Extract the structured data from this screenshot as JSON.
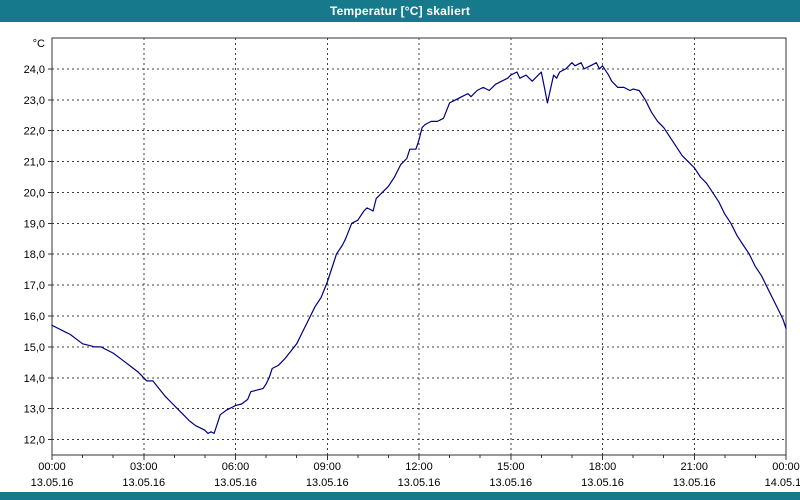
{
  "title_bar": {
    "title": "Temperatur [°C] skaliert",
    "bg_color": "#17798c",
    "fg_color": "#ffffff"
  },
  "chart_data": {
    "type": "line",
    "title": "Temperatur [°C] skaliert",
    "unit_label": "°C",
    "grid": true,
    "legend": "none",
    "line_color": "#000080",
    "ylim": [
      11.5,
      25.0
    ],
    "xlim_hours": [
      0,
      24
    ],
    "yticks": [
      {
        "value": 24,
        "label": "24,0"
      },
      {
        "value": 23,
        "label": "23,0"
      },
      {
        "value": 22,
        "label": "22,0"
      },
      {
        "value": 21,
        "label": "21,0"
      },
      {
        "value": 20,
        "label": "20,0"
      },
      {
        "value": 19,
        "label": "19,0"
      },
      {
        "value": 18,
        "label": "18,0"
      },
      {
        "value": 17,
        "label": "17,0"
      },
      {
        "value": 16,
        "label": "16,0"
      },
      {
        "value": 15,
        "label": "15,0"
      },
      {
        "value": 14,
        "label": "14,0"
      },
      {
        "value": 13,
        "label": "13,0"
      },
      {
        "value": 12,
        "label": "12,0"
      }
    ],
    "xticks": [
      {
        "hour": 0,
        "time": "00:00",
        "date": "13.05.16"
      },
      {
        "hour": 3,
        "time": "03:00",
        "date": "13.05.16"
      },
      {
        "hour": 6,
        "time": "06:00",
        "date": "13.05.16"
      },
      {
        "hour": 9,
        "time": "09:00",
        "date": "13.05.16"
      },
      {
        "hour": 12,
        "time": "12:00",
        "date": "13.05.16"
      },
      {
        "hour": 15,
        "time": "15:00",
        "date": "13.05.16"
      },
      {
        "hour": 18,
        "time": "18:00",
        "date": "13.05.16"
      },
      {
        "hour": 21,
        "time": "21:00",
        "date": "13.05.16"
      },
      {
        "hour": 24,
        "time": "00:00",
        "date": "14.05.16"
      }
    ],
    "series": [
      {
        "name": "Temperatur",
        "color": "#000080",
        "points": [
          [
            0.0,
            15.7
          ],
          [
            0.2,
            15.6
          ],
          [
            0.4,
            15.5
          ],
          [
            0.6,
            15.4
          ],
          [
            0.8,
            15.25
          ],
          [
            1.0,
            15.1
          ],
          [
            1.2,
            15.05
          ],
          [
            1.4,
            15.0
          ],
          [
            1.6,
            15.0
          ],
          [
            1.8,
            14.9
          ],
          [
            2.0,
            14.8
          ],
          [
            2.2,
            14.65
          ],
          [
            2.4,
            14.5
          ],
          [
            2.6,
            14.35
          ],
          [
            2.8,
            14.2
          ],
          [
            3.0,
            14.0
          ],
          [
            3.1,
            13.9
          ],
          [
            3.3,
            13.9
          ],
          [
            3.5,
            13.65
          ],
          [
            3.7,
            13.4
          ],
          [
            3.9,
            13.2
          ],
          [
            4.1,
            13.0
          ],
          [
            4.3,
            12.8
          ],
          [
            4.5,
            12.6
          ],
          [
            4.7,
            12.45
          ],
          [
            4.9,
            12.35
          ],
          [
            5.0,
            12.3
          ],
          [
            5.1,
            12.2
          ],
          [
            5.2,
            12.25
          ],
          [
            5.3,
            12.2
          ],
          [
            5.4,
            12.5
          ],
          [
            5.5,
            12.8
          ],
          [
            5.7,
            12.95
          ],
          [
            5.9,
            13.05
          ],
          [
            6.0,
            13.1
          ],
          [
            6.2,
            13.15
          ],
          [
            6.4,
            13.3
          ],
          [
            6.5,
            13.55
          ],
          [
            6.7,
            13.6
          ],
          [
            6.9,
            13.65
          ],
          [
            7.0,
            13.8
          ],
          [
            7.1,
            14.0
          ],
          [
            7.2,
            14.3
          ],
          [
            7.4,
            14.4
          ],
          [
            7.6,
            14.6
          ],
          [
            7.8,
            14.85
          ],
          [
            8.0,
            15.1
          ],
          [
            8.2,
            15.5
          ],
          [
            8.4,
            15.9
          ],
          [
            8.6,
            16.3
          ],
          [
            8.8,
            16.6
          ],
          [
            9.0,
            17.1
          ],
          [
            9.2,
            17.7
          ],
          [
            9.3,
            18.0
          ],
          [
            9.5,
            18.3
          ],
          [
            9.6,
            18.5
          ],
          [
            9.8,
            19.0
          ],
          [
            10.0,
            19.1
          ],
          [
            10.2,
            19.4
          ],
          [
            10.3,
            19.5
          ],
          [
            10.5,
            19.4
          ],
          [
            10.6,
            19.8
          ],
          [
            10.8,
            20.0
          ],
          [
            11.0,
            20.2
          ],
          [
            11.2,
            20.5
          ],
          [
            11.4,
            20.9
          ],
          [
            11.6,
            21.1
          ],
          [
            11.7,
            21.4
          ],
          [
            11.9,
            21.4
          ],
          [
            12.0,
            21.7
          ],
          [
            12.1,
            22.1
          ],
          [
            12.2,
            22.2
          ],
          [
            12.4,
            22.3
          ],
          [
            12.6,
            22.3
          ],
          [
            12.8,
            22.4
          ],
          [
            13.0,
            22.9
          ],
          [
            13.2,
            23.0
          ],
          [
            13.4,
            23.1
          ],
          [
            13.6,
            23.2
          ],
          [
            13.7,
            23.1
          ],
          [
            13.9,
            23.3
          ],
          [
            14.1,
            23.4
          ],
          [
            14.3,
            23.3
          ],
          [
            14.5,
            23.5
          ],
          [
            14.7,
            23.6
          ],
          [
            14.9,
            23.7
          ],
          [
            15.0,
            23.8
          ],
          [
            15.2,
            23.9
          ],
          [
            15.3,
            23.7
          ],
          [
            15.5,
            23.8
          ],
          [
            15.7,
            23.6
          ],
          [
            15.9,
            23.8
          ],
          [
            16.0,
            23.9
          ],
          [
            16.1,
            23.4
          ],
          [
            16.2,
            22.9
          ],
          [
            16.4,
            23.8
          ],
          [
            16.5,
            23.7
          ],
          [
            16.6,
            23.9
          ],
          [
            16.8,
            24.0
          ],
          [
            17.0,
            24.2
          ],
          [
            17.1,
            24.1
          ],
          [
            17.3,
            24.2
          ],
          [
            17.4,
            24.0
          ],
          [
            17.6,
            24.1
          ],
          [
            17.8,
            24.2
          ],
          [
            17.9,
            24.0
          ],
          [
            18.0,
            24.1
          ],
          [
            18.2,
            23.8
          ],
          [
            18.3,
            23.6
          ],
          [
            18.5,
            23.4
          ],
          [
            18.7,
            23.4
          ],
          [
            18.9,
            23.3
          ],
          [
            19.0,
            23.35
          ],
          [
            19.2,
            23.3
          ],
          [
            19.4,
            23.0
          ],
          [
            19.6,
            22.6
          ],
          [
            19.8,
            22.3
          ],
          [
            20.0,
            22.1
          ],
          [
            20.2,
            21.8
          ],
          [
            20.4,
            21.5
          ],
          [
            20.6,
            21.2
          ],
          [
            20.8,
            21.0
          ],
          [
            21.0,
            20.8
          ],
          [
            21.2,
            20.5
          ],
          [
            21.4,
            20.3
          ],
          [
            21.6,
            20.0
          ],
          [
            21.8,
            19.7
          ],
          [
            22.0,
            19.3
          ],
          [
            22.2,
            19.0
          ],
          [
            22.4,
            18.6
          ],
          [
            22.6,
            18.3
          ],
          [
            22.8,
            18.0
          ],
          [
            23.0,
            17.6
          ],
          [
            23.2,
            17.3
          ],
          [
            23.4,
            16.9
          ],
          [
            23.6,
            16.5
          ],
          [
            23.8,
            16.1
          ],
          [
            23.9,
            15.9
          ],
          [
            24.0,
            15.6
          ]
        ]
      }
    ]
  }
}
